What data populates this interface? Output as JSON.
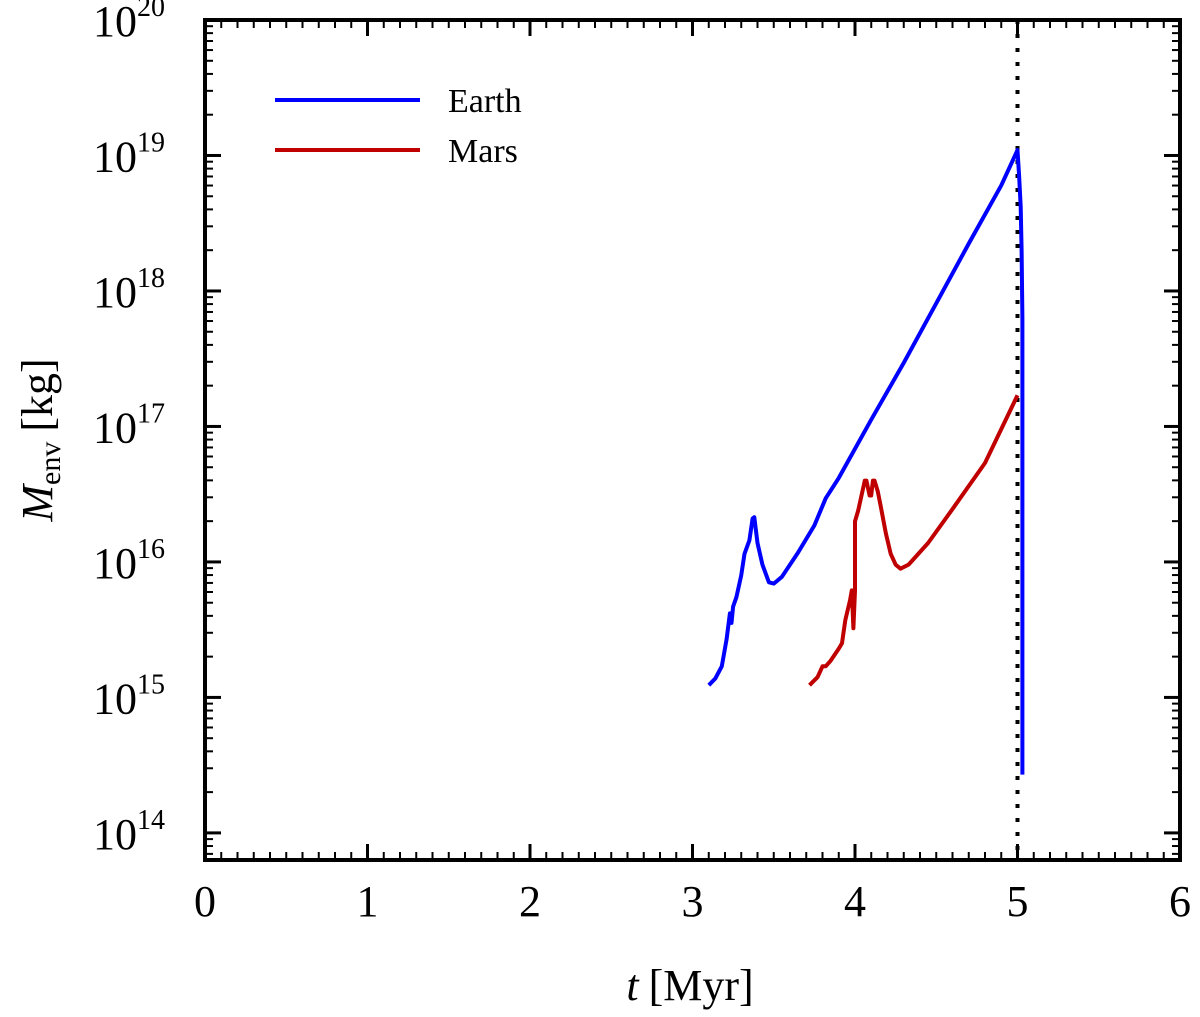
{
  "chart_data": {
    "type": "line",
    "title": "",
    "xlabel": {
      "var": "t",
      "unit": "[Myr]"
    },
    "ylabel": {
      "var": "M",
      "sub": "env",
      "unit": "[kg]"
    },
    "xlim": [
      0,
      6
    ],
    "ylog_exponent_range": [
      13.8,
      20
    ],
    "x_ticks": [
      0,
      1,
      2,
      3,
      4,
      5,
      6
    ],
    "y_ticks": [
      {
        "base": "10",
        "exp": "14",
        "value_log10": 14
      },
      {
        "base": "10",
        "exp": "15",
        "value_log10": 15
      },
      {
        "base": "10",
        "exp": "16",
        "value_log10": 16
      },
      {
        "base": "10",
        "exp": "17",
        "value_log10": 17
      },
      {
        "base": "10",
        "exp": "18",
        "value_log10": 18
      },
      {
        "base": "10",
        "exp": "19",
        "value_log10": 19
      },
      {
        "base": "10",
        "exp": "20",
        "value_log10": 20
      }
    ],
    "legend_position": "top-left",
    "vline": {
      "x": 5.0,
      "style": "dotted",
      "color": "#000000"
    },
    "series": [
      {
        "name": "Earth",
        "color": "#0000ff",
        "points_log10": [
          [
            3.1,
            15.09
          ],
          [
            3.14,
            15.14
          ],
          [
            3.18,
            15.23
          ],
          [
            3.21,
            15.43
          ],
          [
            3.23,
            15.62
          ],
          [
            3.24,
            15.55
          ],
          [
            3.25,
            15.67
          ],
          [
            3.27,
            15.74
          ],
          [
            3.3,
            15.9
          ],
          [
            3.32,
            16.06
          ],
          [
            3.35,
            16.16
          ],
          [
            3.37,
            16.32
          ],
          [
            3.38,
            16.33
          ],
          [
            3.4,
            16.14
          ],
          [
            3.43,
            15.98
          ],
          [
            3.47,
            15.85
          ],
          [
            3.5,
            15.84
          ],
          [
            3.55,
            15.89
          ],
          [
            3.65,
            16.07
          ],
          [
            3.75,
            16.27
          ],
          [
            3.82,
            16.47
          ],
          [
            3.9,
            16.62
          ],
          [
            4.1,
            17.05
          ],
          [
            4.3,
            17.47
          ],
          [
            4.5,
            17.91
          ],
          [
            4.7,
            18.35
          ],
          [
            4.9,
            18.78
          ],
          [
            5.0,
            19.04
          ],
          [
            5.01,
            18.85
          ],
          [
            5.02,
            18.62
          ],
          [
            5.025,
            18.3
          ],
          [
            5.03,
            17.8
          ],
          [
            5.03,
            16.5
          ],
          [
            5.03,
            15.0
          ],
          [
            5.03,
            14.43
          ]
        ]
      },
      {
        "name": "Mars",
        "color": "#c00000",
        "points_log10": [
          [
            3.72,
            15.09
          ],
          [
            3.77,
            15.15
          ],
          [
            3.8,
            15.23
          ],
          [
            3.82,
            15.23
          ],
          [
            3.85,
            15.27
          ],
          [
            3.9,
            15.36
          ],
          [
            3.92,
            15.4
          ],
          [
            3.94,
            15.57
          ],
          [
            3.97,
            15.72
          ],
          [
            3.98,
            15.79
          ],
          [
            3.99,
            15.51
          ],
          [
            4.0,
            15.79
          ],
          [
            4.0,
            16.3
          ],
          [
            4.02,
            16.38
          ],
          [
            4.06,
            16.6
          ],
          [
            4.07,
            16.6
          ],
          [
            4.09,
            16.49
          ],
          [
            4.1,
            16.49
          ],
          [
            4.11,
            16.6
          ],
          [
            4.12,
            16.6
          ],
          [
            4.14,
            16.52
          ],
          [
            4.16,
            16.4
          ],
          [
            4.19,
            16.21
          ],
          [
            4.22,
            16.06
          ],
          [
            4.25,
            15.98
          ],
          [
            4.28,
            15.95
          ],
          [
            4.33,
            15.98
          ],
          [
            4.45,
            16.14
          ],
          [
            4.6,
            16.39
          ],
          [
            4.8,
            16.73
          ],
          [
            5.0,
            17.23
          ]
        ]
      }
    ]
  }
}
